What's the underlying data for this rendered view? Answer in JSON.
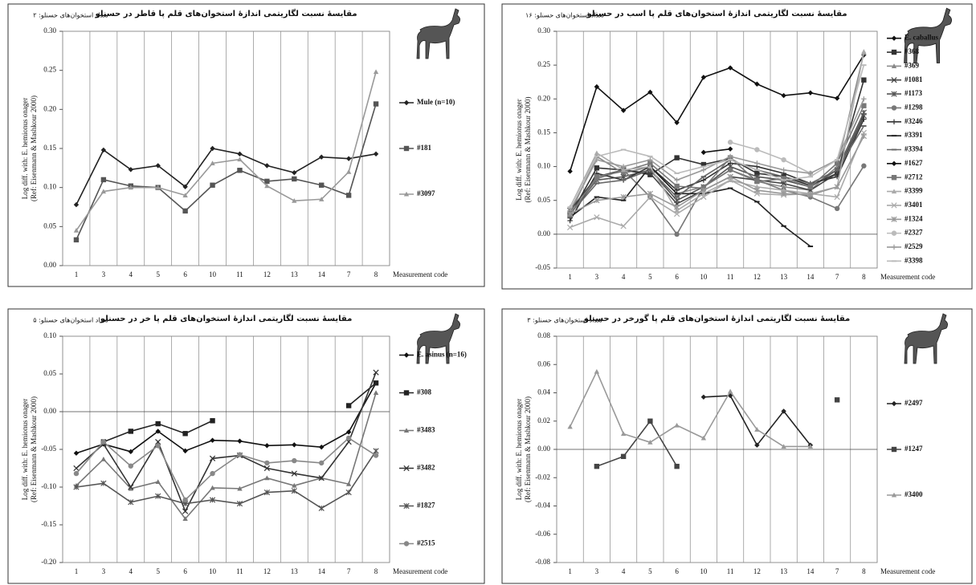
{
  "chart_data": [
    {
      "type": "line",
      "title": "مقایسهٔ نسبت لگاریتمی اندازهٔ استخوان‌های قلم پا قاطر در حسنلو",
      "subtitle": "تعداد استخوان‌های حسنلو: ۲",
      "ylabel": [
        "Log diff. with: E. hemionus onager",
        "(Ref: Eisenmann & Mashkour 2000)"
      ],
      "xlabel": "Measurement code",
      "grid": "x",
      "categories": [
        "1",
        "3",
        "4",
        "5",
        "6",
        "10",
        "11",
        "12",
        "13",
        "14",
        "7",
        "8"
      ],
      "ylim": [
        0,
        0.3
      ],
      "yticks": [
        {
          "value": 0,
          "label": "0.00"
        },
        {
          "value": 0.05,
          "label": "0.05"
        },
        {
          "value": 0.1,
          "label": "0.10"
        },
        {
          "value": 0.15,
          "label": "0.15"
        },
        {
          "value": 0.2,
          "label": "0.20"
        },
        {
          "value": 0.25,
          "label": "0.25"
        },
        {
          "value": 0.3,
          "label": "0.30"
        }
      ],
      "series": [
        {
          "name": "Mule (n=10)",
          "color": "#222222",
          "marker": "diamond",
          "values": [
            0.078,
            0.148,
            0.123,
            0.128,
            0.101,
            0.15,
            0.143,
            0.128,
            0.119,
            0.139,
            0.137,
            0.143
          ]
        },
        {
          "name": "#181",
          "color": "#555555",
          "marker": "square",
          "values": [
            0.033,
            0.11,
            0.102,
            0.1,
            0.07,
            0.103,
            0.122,
            0.108,
            0.111,
            0.103,
            0.09,
            0.207
          ]
        },
        {
          "name": "#3097",
          "color": "#999999",
          "marker": "triangle",
          "values": [
            0.045,
            0.095,
            0.1,
            0.1,
            0.09,
            0.131,
            0.136,
            0.102,
            0.083,
            0.085,
            0.12,
            0.248
          ]
        }
      ]
    },
    {
      "type": "line",
      "title": "مقایسهٔ نسبت لگاریتمی اندازهٔ استخوان‌های قلم پا اسب در حسنلو",
      "subtitle": "تعداد استخوان‌های حسنلو: ۱۶",
      "ylabel": [
        "Log diff. with: E. hemionus onager",
        "(Ref: Eisenmann & Mashkour 2000)"
      ],
      "xlabel": "Measurement code",
      "grid": "x",
      "categories": [
        "1",
        "3",
        "4",
        "5",
        "6",
        "10",
        "11",
        "12",
        "13",
        "14",
        "7",
        "8"
      ],
      "ylim": [
        -0.05,
        0.3
      ],
      "yticks": [
        {
          "value": -0.05,
          "label": "-0.05"
        },
        {
          "value": 0,
          "label": "0.00"
        },
        {
          "value": 0.05,
          "label": "0.05"
        },
        {
          "value": 0.1,
          "label": "0.10"
        },
        {
          "value": 0.15,
          "label": "0.15"
        },
        {
          "value": 0.2,
          "label": "0.20"
        },
        {
          "value": 0.25,
          "label": "0.25"
        },
        {
          "value": 0.3,
          "label": "0.30"
        }
      ],
      "series": [
        {
          "name": "E. caballus",
          "color": "#111111",
          "marker": "diamond",
          "values": [
            0.093,
            0.218,
            0.183,
            0.21,
            0.165,
            0.232,
            0.246,
            0.222,
            0.205,
            0.209,
            0.201,
            0.265
          ]
        },
        {
          "name": "#368",
          "color": "#333333",
          "marker": "square",
          "values": [
            0.027,
            0.098,
            0.095,
            0.088,
            0.113,
            0.103,
            0.112,
            0.09,
            0.085,
            0.072,
            0.09,
            0.228
          ]
        },
        {
          "name": "#369",
          "color": "#888888",
          "marker": "triangle",
          "values": [
            0.03,
            0.115,
            0.09,
            0.1,
            0.06,
            0.07,
            0.095,
            0.078,
            0.07,
            0.065,
            0.1,
            0.268
          ]
        },
        {
          "name": "#1081",
          "color": "#444444",
          "marker": "x",
          "values": [
            0.035,
            0.085,
            0.095,
            0.09,
            0.045,
            0.065,
            0.085,
            0.08,
            0.075,
            0.065,
            0.09,
            0.175
          ]
        },
        {
          "name": "#1173",
          "color": "#555555",
          "marker": "star",
          "values": [
            0.03,
            0.08,
            0.085,
            0.095,
            0.05,
            0.07,
            0.1,
            0.085,
            0.08,
            0.07,
            0.095,
            0.18
          ]
        },
        {
          "name": "#1298",
          "color": "#777777",
          "marker": "circle",
          "values": [
            0.03,
            0.082,
            0.095,
            0.055,
            0.0,
            0.07,
            0.095,
            0.08,
            0.065,
            0.055,
            0.038,
            0.101
          ]
        },
        {
          "name": "#3246",
          "color": "#333333",
          "marker": "plus",
          "values": [
            0.02,
            0.09,
            0.08,
            0.1,
            0.065,
            0.08,
            0.105,
            0.1,
            0.09,
            0.075,
            0.085,
            0.17
          ]
        },
        {
          "name": "#3391",
          "color": "#222222",
          "marker": "dash",
          "values": [
            0.025,
            0.055,
            0.05,
            0.1,
            0.06,
            0.06,
            0.068,
            0.048,
            0.012,
            -0.018,
            null,
            null
          ]
        },
        {
          "name": "#3394",
          "color": "#666666",
          "marker": "dash",
          "values": [
            0.03,
            0.075,
            0.08,
            0.095,
            0.055,
            0.085,
            0.11,
            0.095,
            0.085,
            0.075,
            0.095,
            0.16
          ]
        },
        {
          "name": "#1627",
          "color": "#111111",
          "marker": "diamond",
          "values": [
            null,
            null,
            null,
            null,
            null,
            0.121,
            0.126,
            null,
            null,
            null,
            null,
            null
          ]
        },
        {
          "name": "#2712",
          "color": "#777777",
          "marker": "square",
          "values": [
            0.028,
            0.085,
            0.093,
            0.105,
            0.071,
            0.068,
            0.113,
            0.078,
            0.082,
            0.07,
            0.105,
            0.19
          ]
        },
        {
          "name": "#3399",
          "color": "#aaaaaa",
          "marker": "triangle",
          "values": [
            0.04,
            0.12,
            0.095,
            0.1,
            0.035,
            0.06,
            0.08,
            0.07,
            0.065,
            0.06,
            0.07,
            0.27
          ]
        },
        {
          "name": "#3401",
          "color": "#aaaaaa",
          "marker": "x",
          "values": [
            0.01,
            0.025,
            0.012,
            0.055,
            0.03,
            0.055,
            0.08,
            0.06,
            0.058,
            0.06,
            0.055,
            0.15
          ]
        },
        {
          "name": "#1324",
          "color": "#999999",
          "marker": "star",
          "values": [
            0.03,
            0.05,
            0.055,
            0.06,
            0.04,
            0.065,
            0.085,
            0.065,
            0.06,
            0.058,
            0.07,
            0.145
          ]
        },
        {
          "name": "#2327",
          "color": "#bbbbbb",
          "marker": "circle",
          "values": [
            null,
            null,
            null,
            null,
            null,
            null,
            0.136,
            0.125,
            0.11,
            0.09,
            null,
            null
          ]
        },
        {
          "name": "#2529",
          "color": "#999999",
          "marker": "plus",
          "values": [
            0.035,
            0.11,
            0.1,
            0.11,
            0.08,
            0.095,
            0.115,
            0.105,
            0.095,
            0.09,
            0.11,
            0.2
          ]
        },
        {
          "name": "#3398",
          "color": "#bbbbbb",
          "marker": "dash",
          "values": [
            0.04,
            0.115,
            0.125,
            0.115,
            0.09,
            0.1,
            0.11,
            0.095,
            0.08,
            0.085,
            0.11,
            0.25
          ]
        }
      ]
    },
    {
      "type": "line",
      "title": "مقایسهٔ نسبت لگاریتمی اندازهٔ استخوان‌های قلم پا خر در حسنلو",
      "subtitle": "تعداد استخوان‌های حسنلو: ۵",
      "ylabel": [
        "Log diff. with: E. hemionus onager",
        "(Ref: Eisenmann & Mashkour 2000)"
      ],
      "xlabel": "Measurement code",
      "grid": "x",
      "categories": [
        "1",
        "3",
        "4",
        "5",
        "6",
        "10",
        "11",
        "12",
        "13",
        "14",
        "7",
        "8"
      ],
      "ylim": [
        -0.2,
        0.1
      ],
      "yticks": [
        {
          "value": -0.2,
          "label": "-0.20"
        },
        {
          "value": -0.15,
          "label": "-0.15"
        },
        {
          "value": -0.1,
          "label": "-0.10"
        },
        {
          "value": -0.05,
          "label": "-0.05"
        },
        {
          "value": 0,
          "label": "0.00"
        },
        {
          "value": 0.05,
          "label": "0.05"
        },
        {
          "value": 0.1,
          "label": "0.10"
        }
      ],
      "series": [
        {
          "name": "E. asinus (n=16)",
          "color": "#111111",
          "marker": "diamond",
          "values": [
            -0.055,
            -0.043,
            -0.053,
            -0.026,
            -0.052,
            -0.038,
            -0.039,
            -0.045,
            -0.044,
            -0.047,
            -0.027,
            0.038
          ]
        },
        {
          "name": "#308",
          "color": "#222222",
          "marker": "square",
          "values": [
            null,
            -0.04,
            -0.026,
            -0.016,
            -0.029,
            -0.012,
            null,
            null,
            null,
            null,
            0.008,
            0.038
          ]
        },
        {
          "name": "#3483",
          "color": "#777777",
          "marker": "triangle",
          "values": [
            -0.098,
            -0.063,
            -0.102,
            -0.093,
            -0.142,
            -0.101,
            -0.102,
            -0.088,
            -0.098,
            -0.088,
            -0.096,
            0.025
          ]
        },
        {
          "name": "#3482",
          "color": "#333333",
          "marker": "x",
          "values": [
            -0.075,
            -0.043,
            -0.1,
            -0.04,
            -0.132,
            -0.062,
            -0.058,
            -0.075,
            -0.082,
            -0.088,
            -0.04,
            0.052
          ]
        },
        {
          "name": "#1827",
          "color": "#555555",
          "marker": "star",
          "values": [
            -0.1,
            -0.095,
            -0.12,
            -0.112,
            -0.122,
            -0.117,
            -0.122,
            -0.107,
            -0.105,
            -0.128,
            -0.107,
            -0.052
          ]
        },
        {
          "name": "#2515",
          "color": "#888888",
          "marker": "circle",
          "values": [
            -0.082,
            -0.04,
            -0.072,
            -0.045,
            -0.117,
            -0.082,
            -0.057,
            -0.068,
            -0.065,
            -0.068,
            -0.035,
            -0.058
          ]
        }
      ]
    },
    {
      "type": "line",
      "title": "مقایسهٔ نسبت لگاریتمی اندازهٔ استخوان‌های قلم پا گورخر در حسنلو",
      "subtitle": "تعداد استخوان‌های حسنلو: ۳",
      "ylabel": [
        "Log diff. with: E. hemionus onager",
        "(Ref: Eisenmann & Mashkour 2000)"
      ],
      "xlabel": "Measurement code",
      "grid": "x",
      "categories": [
        "1",
        "3",
        "4",
        "5",
        "6",
        "10",
        "11",
        "12",
        "13",
        "14",
        "7",
        "8"
      ],
      "ylim": [
        -0.08,
        0.08
      ],
      "yticks": [
        {
          "value": -0.08,
          "label": "-0.08"
        },
        {
          "value": -0.06,
          "label": "-0.06"
        },
        {
          "value": -0.04,
          "label": "-0.04"
        },
        {
          "value": -0.02,
          "label": "-0.02"
        },
        {
          "value": 0,
          "label": "0.00"
        },
        {
          "value": 0.02,
          "label": "0.02"
        },
        {
          "value": 0.04,
          "label": "0.04"
        },
        {
          "value": 0.06,
          "label": "0.06"
        },
        {
          "value": 0.08,
          "label": "0.08"
        }
      ],
      "series": [
        {
          "name": "#2497",
          "color": "#222222",
          "marker": "diamond",
          "values": [
            null,
            null,
            null,
            null,
            null,
            0.037,
            0.038,
            0.003,
            0.027,
            0.003,
            null,
            null
          ]
        },
        {
          "name": "#1247",
          "color": "#444444",
          "marker": "square",
          "values": [
            null,
            -0.012,
            -0.005,
            0.02,
            -0.012,
            null,
            null,
            null,
            null,
            null,
            0.035,
            null
          ]
        },
        {
          "name": "#3400",
          "color": "#999999",
          "marker": "triangle",
          "values": [
            0.016,
            0.055,
            0.011,
            0.005,
            0.017,
            0.008,
            0.041,
            0.014,
            0.002,
            0.002,
            null,
            null
          ]
        }
      ]
    }
  ]
}
